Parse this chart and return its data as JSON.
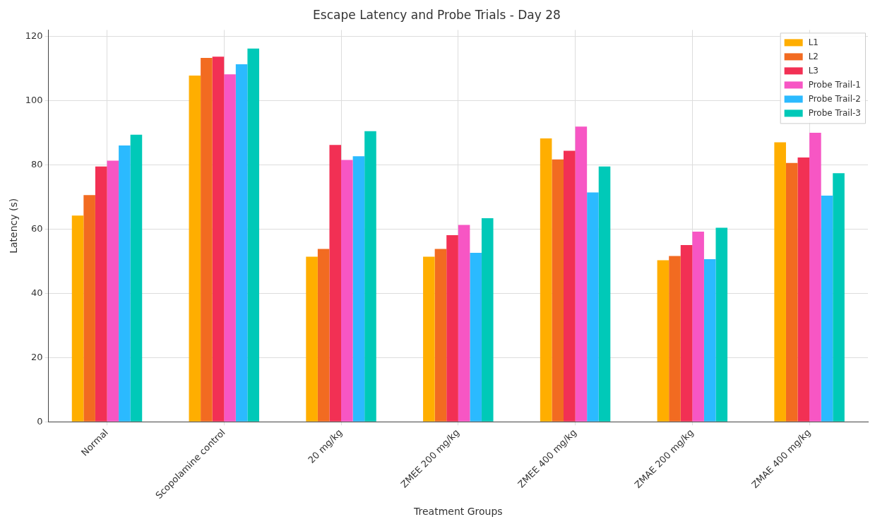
{
  "chart_data": {
    "type": "bar",
    "title": "Escape Latency and Probe Trials - Day 28",
    "xlabel": "Treatment Groups",
    "ylabel": "Latency (s)",
    "categories": [
      "Normal",
      "Scopolamine control",
      "20 mg/kg",
      "ZMEE 200 mg/kg",
      "ZMEE 400 mg/kg",
      "ZMAE 200 mg/kg",
      "ZMAE 400 mg/kg"
    ],
    "series": [
      {
        "name": "L1",
        "color": "#ffae00",
        "values": [
          64.2,
          107.8,
          51.4,
          51.4,
          88.2,
          50.3,
          87.0
        ]
      },
      {
        "name": "L2",
        "color": "#f26b21",
        "values": [
          70.6,
          113.3,
          53.8,
          53.8,
          81.7,
          51.6,
          80.6
        ]
      },
      {
        "name": "L3",
        "color": "#f23054",
        "values": [
          79.5,
          113.7,
          86.2,
          58.1,
          84.4,
          55.0,
          82.3
        ]
      },
      {
        "name": "Probe Trail-1",
        "color": "#f756c4",
        "values": [
          81.3,
          108.2,
          81.5,
          61.3,
          91.9,
          59.2,
          90.0
        ]
      },
      {
        "name": "Probe Trail-2",
        "color": "#2bbaff",
        "values": [
          86.0,
          111.3,
          82.7,
          52.6,
          71.4,
          50.6,
          70.4
        ]
      },
      {
        "name": "Probe Trail-3",
        "color": "#00c9b8",
        "values": [
          89.4,
          116.2,
          90.5,
          63.4,
          79.5,
          60.4,
          77.4
        ]
      }
    ],
    "ylim": [
      0,
      122
    ],
    "yticks": [
      0,
      20,
      40,
      60,
      80,
      100,
      120
    ],
    "grid": true,
    "legend": "top right"
  }
}
